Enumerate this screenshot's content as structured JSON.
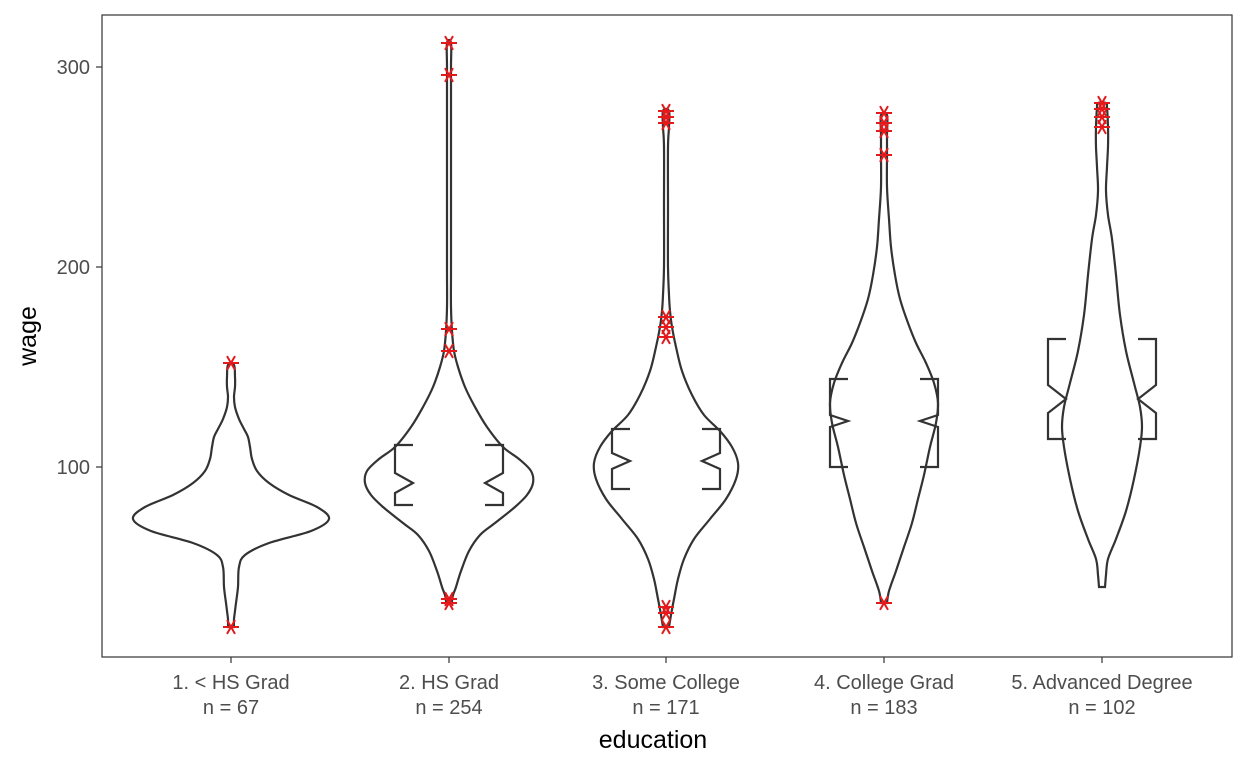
{
  "chart_data": {
    "type": "violin",
    "xlabel": "education",
    "ylabel": "wage",
    "ylim": [
      5,
      326
    ],
    "yticks": [
      100,
      200,
      300
    ],
    "grid": false,
    "categories": [
      "1. < HS Grad",
      "2. HS Grad",
      "3. Some College",
      "4. College Grad",
      "5. Advanced Degree"
    ],
    "count_labels": [
      "n =  67",
      "n =  254",
      "n =  171",
      "n =  183",
      "n =  102"
    ],
    "counts": [
      67,
      254,
      171,
      183,
      102
    ],
    "colors": {
      "outline": "#333333",
      "outlier": "#e31a1c",
      "panel_border": "#333333"
    },
    "groups": [
      {
        "category": "1. < HS Grad",
        "violin": [
          [
            20,
            3
          ],
          [
            24,
            3
          ],
          [
            28,
            4
          ],
          [
            32,
            5
          ],
          [
            40,
            7
          ],
          [
            50,
            8
          ],
          [
            56,
            14
          ],
          [
            62,
            38
          ],
          [
            68,
            80
          ],
          [
            74,
            98
          ],
          [
            80,
            86
          ],
          [
            86,
            58
          ],
          [
            92,
            38
          ],
          [
            98,
            26
          ],
          [
            104,
            21
          ],
          [
            110,
            19
          ],
          [
            115,
            17
          ],
          [
            119,
            13
          ],
          [
            124,
            8
          ],
          [
            130,
            4
          ],
          [
            135,
            3
          ],
          [
            140,
            4
          ],
          [
            145,
            4
          ],
          [
            151,
            3
          ]
        ],
        "box": null,
        "outliers": [
          20,
          152
        ]
      },
      {
        "category": "2. HS Grad",
        "violin": [
          [
            33,
            3
          ],
          [
            36,
            4
          ],
          [
            40,
            7
          ],
          [
            48,
            12
          ],
          [
            58,
            20
          ],
          [
            66,
            31
          ],
          [
            72,
            46
          ],
          [
            80,
            66
          ],
          [
            86,
            78
          ],
          [
            92,
            84
          ],
          [
            98,
            82
          ],
          [
            104,
            70
          ],
          [
            110,
            54
          ],
          [
            120,
            38
          ],
          [
            130,
            26
          ],
          [
            140,
            16
          ],
          [
            150,
            9
          ],
          [
            158,
            5
          ],
          [
            168,
            3
          ],
          [
            180,
            2
          ],
          [
            200,
            2
          ],
          [
            240,
            2
          ],
          [
            280,
            2
          ],
          [
            300,
            2
          ],
          [
            312,
            2
          ]
        ],
        "box": {
          "q1": 81,
          "lower_notch": 87,
          "median": 92,
          "upper_notch": 97,
          "q3": 111
        },
        "outliers": [
          32,
          34,
          158,
          169,
          296,
          312
        ]
      },
      {
        "category": "3. Some College",
        "violin": [
          [
            20,
            3
          ],
          [
            26,
            5
          ],
          [
            34,
            8
          ],
          [
            44,
            12
          ],
          [
            54,
            18
          ],
          [
            64,
            28
          ],
          [
            74,
            44
          ],
          [
            84,
            60
          ],
          [
            94,
            70
          ],
          [
            102,
            72
          ],
          [
            110,
            66
          ],
          [
            118,
            54
          ],
          [
            126,
            38
          ],
          [
            136,
            26
          ],
          [
            148,
            16
          ],
          [
            160,
            10
          ],
          [
            170,
            6
          ],
          [
            178,
            4
          ],
          [
            186,
            3
          ],
          [
            200,
            2
          ],
          [
            230,
            2
          ],
          [
            260,
            2
          ],
          [
            270,
            3
          ],
          [
            278,
            3
          ]
        ],
        "box": {
          "q1": 89,
          "lower_notch": 99,
          "median": 103,
          "upper_notch": 107,
          "q3": 119
        },
        "outliers": [
          20,
          27,
          30,
          165,
          170,
          175,
          272,
          275,
          278
        ]
      },
      {
        "category": "4. College Grad",
        "violin": [
          [
            32,
            3
          ],
          [
            38,
            5
          ],
          [
            48,
            12
          ],
          [
            60,
            20
          ],
          [
            72,
            28
          ],
          [
            84,
            34
          ],
          [
            96,
            40
          ],
          [
            110,
            46
          ],
          [
            122,
            52
          ],
          [
            132,
            54
          ],
          [
            142,
            50
          ],
          [
            152,
            42
          ],
          [
            162,
            32
          ],
          [
            172,
            24
          ],
          [
            184,
            16
          ],
          [
            196,
            11
          ],
          [
            210,
            7
          ],
          [
            224,
            5
          ],
          [
            240,
            3
          ],
          [
            256,
            3
          ],
          [
            266,
            3
          ],
          [
            276,
            3
          ]
        ],
        "box": {
          "q1": 100,
          "lower_notch": 120,
          "median": 123,
          "upper_notch": 126,
          "q3": 144
        },
        "outliers": [
          32,
          256,
          268,
          272,
          277
        ]
      },
      {
        "category": "5. Advanced Degree",
        "violin": [
          [
            40,
            3
          ],
          [
            46,
            4
          ],
          [
            54,
            6
          ],
          [
            64,
            14
          ],
          [
            78,
            24
          ],
          [
            94,
            32
          ],
          [
            110,
            38
          ],
          [
            120,
            40
          ],
          [
            130,
            38
          ],
          [
            142,
            32
          ],
          [
            158,
            24
          ],
          [
            176,
            18
          ],
          [
            196,
            14
          ],
          [
            214,
            10
          ],
          [
            226,
            6
          ],
          [
            238,
            4
          ],
          [
            250,
            5
          ],
          [
            260,
            6
          ],
          [
            270,
            6
          ],
          [
            280,
            5
          ],
          [
            282,
            4
          ]
        ],
        "box": {
          "q1": 114,
          "lower_notch": 127,
          "median": 134,
          "upper_notch": 141,
          "q3": 164
        },
        "outliers": [
          270,
          275,
          279,
          282
        ]
      }
    ]
  }
}
